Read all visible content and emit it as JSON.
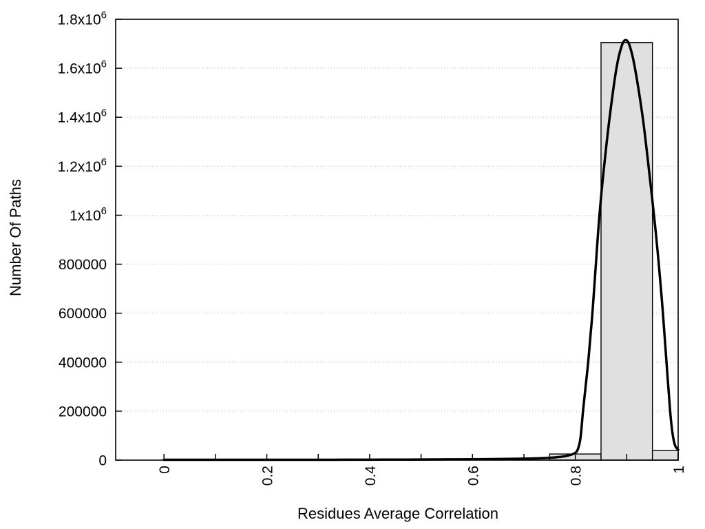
{
  "chart_data": {
    "type": "histogram_with_fit_curve",
    "title": "",
    "xlabel": "Residues Average Correlation",
    "ylabel": "Number Of Paths",
    "xlim": [
      -0.094,
      1.0
    ],
    "ylim": [
      0,
      1800000
    ],
    "grid": {
      "horizontal": "dotted",
      "vertical": "none"
    },
    "legend": "none",
    "x_ticks": [
      0,
      0.1,
      0.2,
      0.3,
      0.4,
      0.5,
      0.6,
      0.7,
      0.8,
      0.9,
      1.0
    ],
    "x_tick_labels": [
      {
        "value": 0,
        "label": "0"
      },
      {
        "value": 0.2,
        "label": "0.2"
      },
      {
        "value": 0.4,
        "label": "0.4"
      },
      {
        "value": 0.6,
        "label": "0.6"
      },
      {
        "value": 0.8,
        "label": "0.8"
      },
      {
        "value": 1.0,
        "label": "1"
      }
    ],
    "x_tick_label_rotation": -90,
    "y_tick_labels": [
      {
        "value": 0,
        "label": "0"
      },
      {
        "value": 200000,
        "label": "200000"
      },
      {
        "value": 400000,
        "label": "400000"
      },
      {
        "value": 600000,
        "label": "600000"
      },
      {
        "value": 800000,
        "label": "800000"
      },
      {
        "value": 1000000,
        "label": "1x10^6"
      },
      {
        "value": 1200000,
        "label": "1.2x10^6"
      },
      {
        "value": 1400000,
        "label": "1.4x10^6"
      },
      {
        "value": 1600000,
        "label": "1.6x10^6"
      },
      {
        "value": 1800000,
        "label": "1.8x10^6"
      }
    ],
    "bars": [
      {
        "x_start": 0.75,
        "x_end": 0.85,
        "count": 25000
      },
      {
        "x_start": 0.85,
        "x_end": 0.95,
        "count": 1705000
      },
      {
        "x_start": 0.95,
        "x_end": 1.0,
        "count": 40000
      }
    ],
    "curve": {
      "name": "fit-curve",
      "peak_x": 0.898,
      "peak_y": 1715000,
      "points": [
        [
          0.0,
          1500
        ],
        [
          0.05,
          1500
        ],
        [
          0.1,
          1500
        ],
        [
          0.15,
          1500
        ],
        [
          0.2,
          1500
        ],
        [
          0.25,
          1500
        ],
        [
          0.3,
          1500
        ],
        [
          0.35,
          1600
        ],
        [
          0.4,
          1800
        ],
        [
          0.45,
          2000
        ],
        [
          0.5,
          2500
        ],
        [
          0.55,
          3000
        ],
        [
          0.6,
          3500
        ],
        [
          0.65,
          4500
        ],
        [
          0.7,
          6000
        ],
        [
          0.72,
          7000
        ],
        [
          0.74,
          8500
        ],
        [
          0.76,
          11000
        ],
        [
          0.78,
          16000
        ],
        [
          0.79,
          21000
        ],
        [
          0.8,
          30000
        ],
        [
          0.805,
          45000
        ],
        [
          0.81,
          90000
        ],
        [
          0.815,
          200000
        ],
        [
          0.82,
          300000
        ],
        [
          0.825,
          400000
        ],
        [
          0.83,
          520000
        ],
        [
          0.834,
          620000
        ],
        [
          0.84,
          800000
        ],
        [
          0.847,
          1000000
        ],
        [
          0.856,
          1200000
        ],
        [
          0.868,
          1420000
        ],
        [
          0.88,
          1600000
        ],
        [
          0.89,
          1690000
        ],
        [
          0.898,
          1715000
        ],
        [
          0.906,
          1690000
        ],
        [
          0.916,
          1600000
        ],
        [
          0.931,
          1400000
        ],
        [
          0.943,
          1190000
        ],
        [
          0.953,
          1000000
        ],
        [
          0.962,
          810000
        ],
        [
          0.97,
          610000
        ],
        [
          0.977,
          410000
        ],
        [
          0.984,
          210000
        ],
        [
          0.989,
          110000
        ],
        [
          0.994,
          60000
        ],
        [
          1.0,
          42000
        ]
      ]
    },
    "colors": {
      "background": "#ffffff",
      "bar_fill": "#e0e0e0",
      "bar_border": "#000000",
      "curve": "#000000",
      "grid": "#bbbbbb",
      "axis": "#000000",
      "text": "#000000"
    }
  }
}
